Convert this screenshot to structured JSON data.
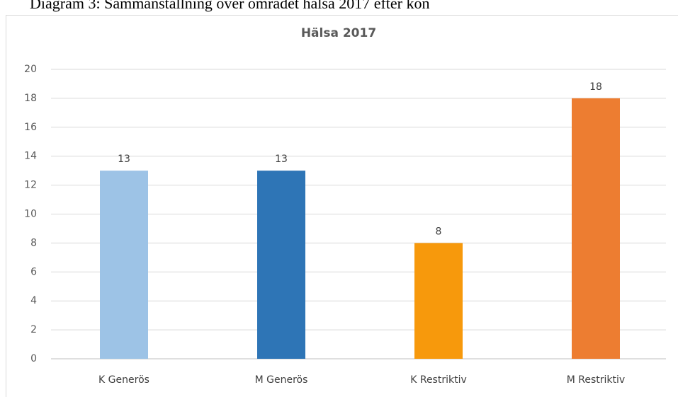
{
  "caption": "Diagram 3: Sammanställning över området hälsa 2017 efter kön",
  "chart_data": {
    "type": "bar",
    "title": "Hälsa 2017",
    "categories": [
      "K Generös",
      "M Generös",
      "K Restriktiv",
      "M Restriktiv"
    ],
    "values": [
      13,
      13,
      8,
      18
    ],
    "colors": [
      "#9dc3e6",
      "#2e75b6",
      "#f7990c",
      "#ed7d31"
    ],
    "ylim": [
      0,
      20
    ],
    "yticks": [
      0,
      2,
      4,
      6,
      8,
      10,
      12,
      14,
      16,
      18,
      20
    ],
    "grid": true
  }
}
